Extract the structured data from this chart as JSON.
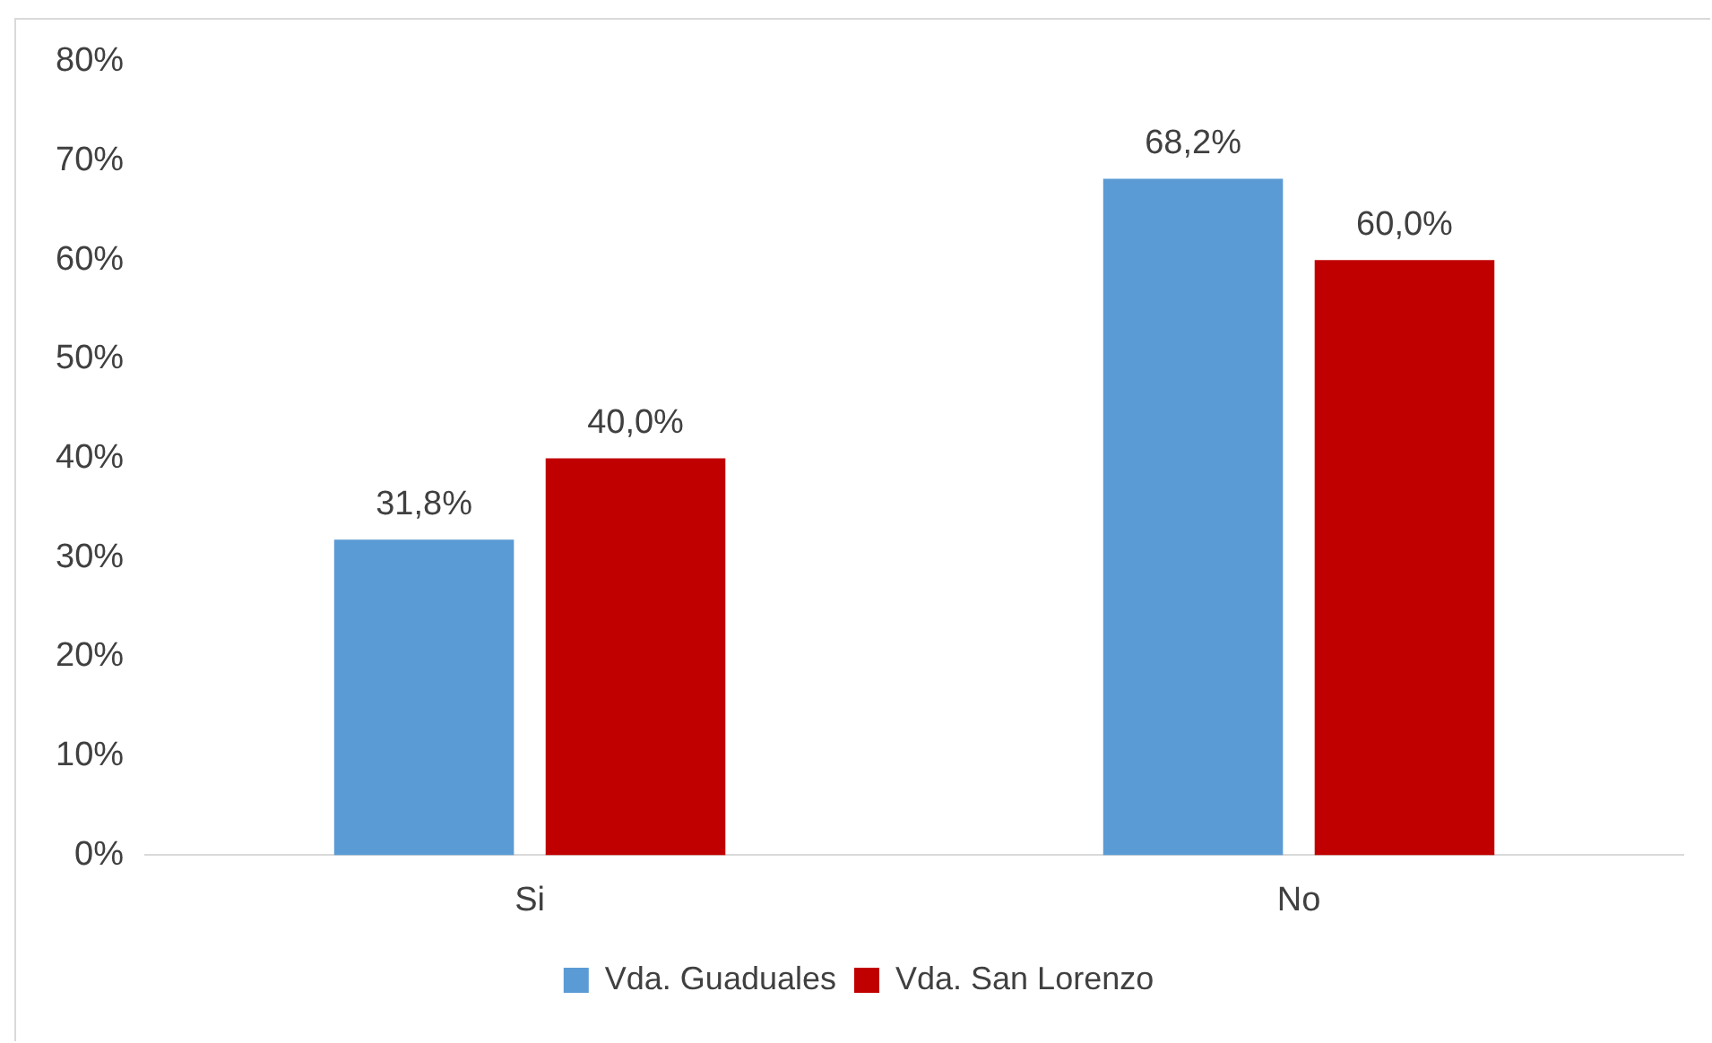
{
  "chart_data": {
    "type": "bar",
    "categories": [
      "Si",
      "No"
    ],
    "series": [
      {
        "name": "Vda. Guaduales",
        "color": "#5b9bd5",
        "values": [
          31.8,
          68.2
        ],
        "value_labels": [
          "31,8%",
          "68,2%"
        ]
      },
      {
        "name": "Vda. San Lorenzo",
        "color": "#c00000",
        "values": [
          40.0,
          60.0
        ],
        "value_labels": [
          "40,0%",
          "60,0%"
        ]
      }
    ],
    "ylim": [
      0,
      80
    ],
    "yticks": [
      {
        "value": 0,
        "label": "0%"
      },
      {
        "value": 10,
        "label": "10%"
      },
      {
        "value": 20,
        "label": "20%"
      },
      {
        "value": 30,
        "label": "30%"
      },
      {
        "value": 40,
        "label": "40%"
      },
      {
        "value": 50,
        "label": "50%"
      },
      {
        "value": 60,
        "label": "60%"
      },
      {
        "value": 70,
        "label": "70%"
      },
      {
        "value": 80,
        "label": "80%"
      }
    ],
    "grid": false,
    "legend": "bottom"
  }
}
